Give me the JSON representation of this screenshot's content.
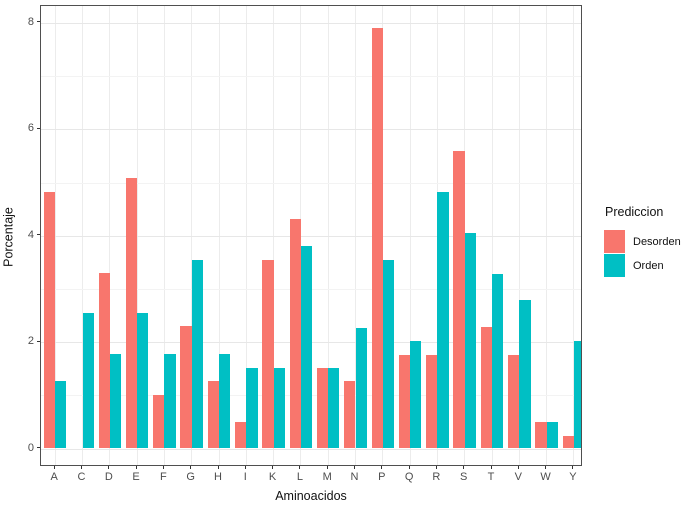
{
  "chart_data": {
    "type": "bar",
    "title": "",
    "xlabel": "Aminoacidos",
    "ylabel": "Porcentaje",
    "legend_title": "Prediccion",
    "legend_position": "right",
    "grid": true,
    "categories": [
      "A",
      "C",
      "D",
      "E",
      "F",
      "G",
      "H",
      "I",
      "K",
      "L",
      "M",
      "N",
      "P",
      "Q",
      "R",
      "S",
      "T",
      "V",
      "W",
      "Y"
    ],
    "series": [
      {
        "name": "Desorden",
        "color": "#F8766D",
        "values": [
          4.83,
          0,
          3.3,
          5.09,
          1.0,
          2.3,
          1.26,
          0.5,
          3.54,
          4.31,
          1.51,
          1.26,
          7.91,
          1.76,
          1.76,
          5.59,
          2.28,
          1.76,
          0.5,
          0.24
        ]
      },
      {
        "name": "Orden",
        "color": "#00BFC4",
        "values": [
          1.26,
          2.54,
          1.77,
          2.54,
          1.77,
          3.54,
          1.77,
          1.51,
          1.51,
          3.81,
          1.51,
          2.27,
          3.55,
          2.02,
          4.82,
          4.05,
          3.28,
          2.79,
          0.5,
          2.02
        ]
      }
    ],
    "ylim": [
      0,
      8.3
    ],
    "y_major_ticks": [
      0,
      2,
      4,
      6,
      8
    ],
    "y_minor_ticks": [
      1,
      3,
      5,
      7
    ]
  }
}
